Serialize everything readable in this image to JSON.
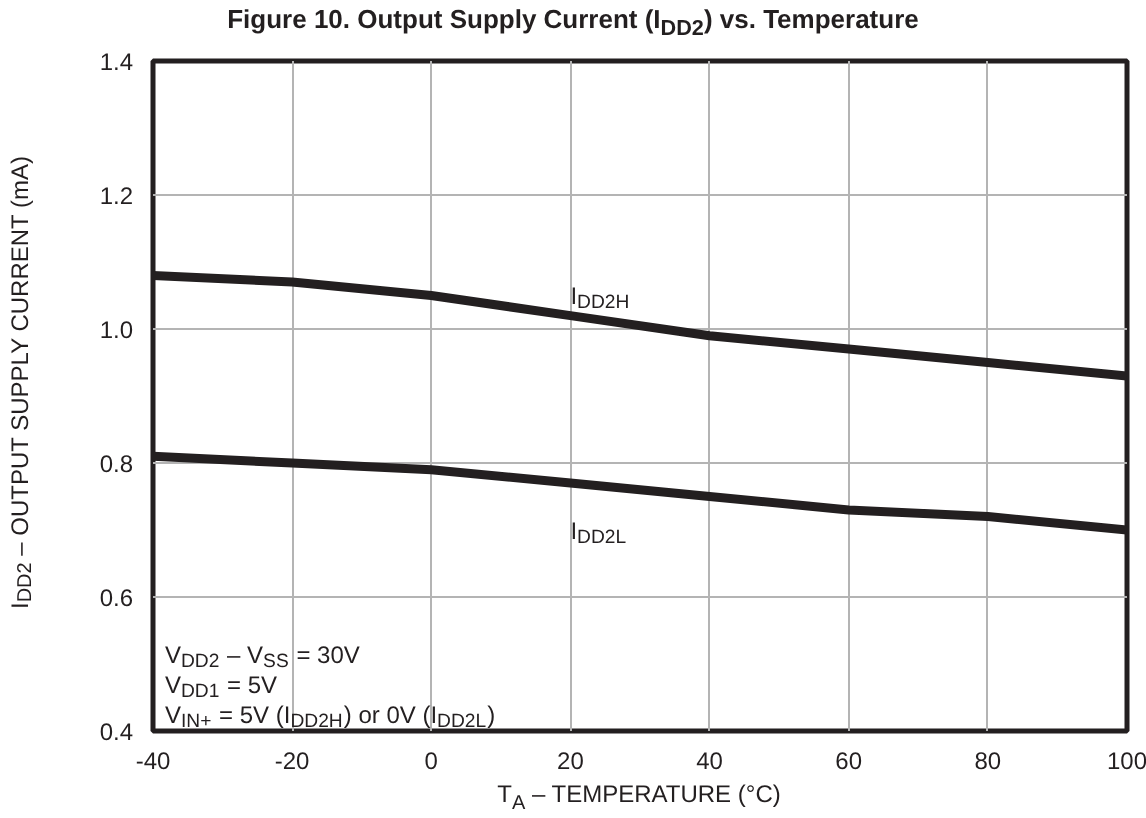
{
  "chart_data": {
    "type": "line",
    "title": "Figure 10. Output Supply Current (I$_{DD2}$) vs. Temperature",
    "xlabel": "T$_{A}$ – TEMPERATURE (°C)",
    "ylabel": "I$_{DD2}$ – OUTPUT SUPPLY CURRENT (mA)",
    "x": [
      -40,
      -20,
      0,
      20,
      40,
      60,
      80,
      100
    ],
    "series": [
      {
        "name": "I$_{DD2H}$",
        "color": "#231f20",
        "values": [
          1.08,
          1.07,
          1.05,
          1.02,
          0.99,
          0.97,
          0.95,
          0.93
        ]
      },
      {
        "name": "I$_{DD2L}$",
        "color": "#231f20",
        "values": [
          0.81,
          0.8,
          0.79,
          0.77,
          0.75,
          0.73,
          0.72,
          0.7
        ]
      }
    ],
    "xlim": [
      -40,
      100
    ],
    "ylim": [
      0.4,
      1.4
    ],
    "xticks": [
      -40,
      -20,
      0,
      20,
      40,
      60,
      80,
      100
    ],
    "yticks": [
      {
        "value": 0.4,
        "label": "0.4"
      },
      {
        "value": 0.6,
        "label": "0.6"
      },
      {
        "value": 0.8,
        "label": "0.8"
      },
      {
        "value": 1.0,
        "label": "1.0"
      },
      {
        "value": 1.2,
        "label": "1.2"
      },
      {
        "value": 1.4,
        "label": "1.4"
      }
    ],
    "annotations": [
      "V$_{DD2}$ – V$_{SS}$ = 30V",
      "V$_{DD1}$ = 5V",
      "V$_{IN+}$ = 5V (I$_{DD2H}$) or 0V (I$_{DD2L}$)"
    ],
    "grid": true,
    "marker": "none",
    "line_style": "solid"
  }
}
